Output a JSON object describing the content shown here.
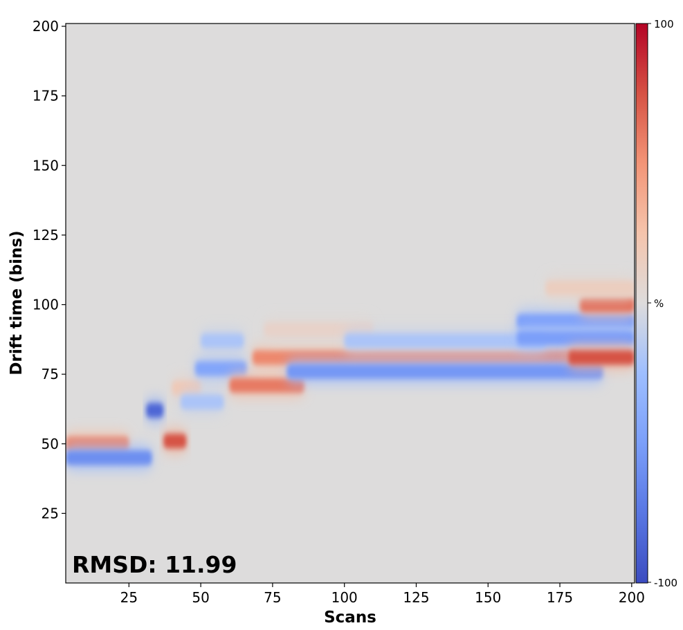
{
  "chart_data": {
    "type": "heatmap",
    "xlabel": "Scans",
    "ylabel": "Drift time (bins)",
    "xlim": [
      3,
      201
    ],
    "ylim": [
      0,
      201
    ],
    "x_ticks": [
      25,
      50,
      75,
      100,
      125,
      150,
      175,
      200
    ],
    "y_ticks": [
      25,
      50,
      75,
      100,
      125,
      150,
      175,
      200
    ],
    "colorbar": {
      "colormap": "coolwarm",
      "min": -100,
      "max": 100,
      "min_label": "-100",
      "max_label": "100",
      "mid_label": "%"
    },
    "annotation": "RMSD: 11.99",
    "features": [
      {
        "x_start": 3,
        "x_end": 25,
        "y": 50,
        "value": 55
      },
      {
        "x_start": 3,
        "x_end": 33,
        "y": 45,
        "value": -60
      },
      {
        "x_start": 31,
        "x_end": 37,
        "y": 62,
        "value": -85
      },
      {
        "x_start": 37,
        "x_end": 45,
        "y": 51,
        "value": 75
      },
      {
        "x_start": 40,
        "x_end": 50,
        "y": 70,
        "value": 20
      },
      {
        "x_start": 43,
        "x_end": 58,
        "y": 65,
        "value": -20
      },
      {
        "x_start": 50,
        "x_end": 65,
        "y": 87,
        "value": -20
      },
      {
        "x_start": 48,
        "x_end": 66,
        "y": 77,
        "value": -45
      },
      {
        "x_start": 60,
        "x_end": 86,
        "y": 71,
        "value": 60
      },
      {
        "x_start": 68,
        "x_end": 180,
        "y": 81,
        "value": 55
      },
      {
        "x_start": 80,
        "x_end": 190,
        "y": 76,
        "value": -55
      },
      {
        "x_start": 72,
        "x_end": 110,
        "y": 91,
        "value": 10
      },
      {
        "x_start": 100,
        "x_end": 170,
        "y": 87,
        "value": -20
      },
      {
        "x_start": 160,
        "x_end": 201,
        "y": 94,
        "value": -50
      },
      {
        "x_start": 160,
        "x_end": 201,
        "y": 88,
        "value": -50
      },
      {
        "x_start": 178,
        "x_end": 201,
        "y": 81,
        "value": 75
      },
      {
        "x_start": 182,
        "x_end": 201,
        "y": 100,
        "value": 65
      },
      {
        "x_start": 170,
        "x_end": 201,
        "y": 106,
        "value": 15
      }
    ]
  },
  "colors": {
    "background": "#dddcdc",
    "cold": "#3b4cc0",
    "neutral": "#dddddd",
    "hot": "#b40426"
  }
}
